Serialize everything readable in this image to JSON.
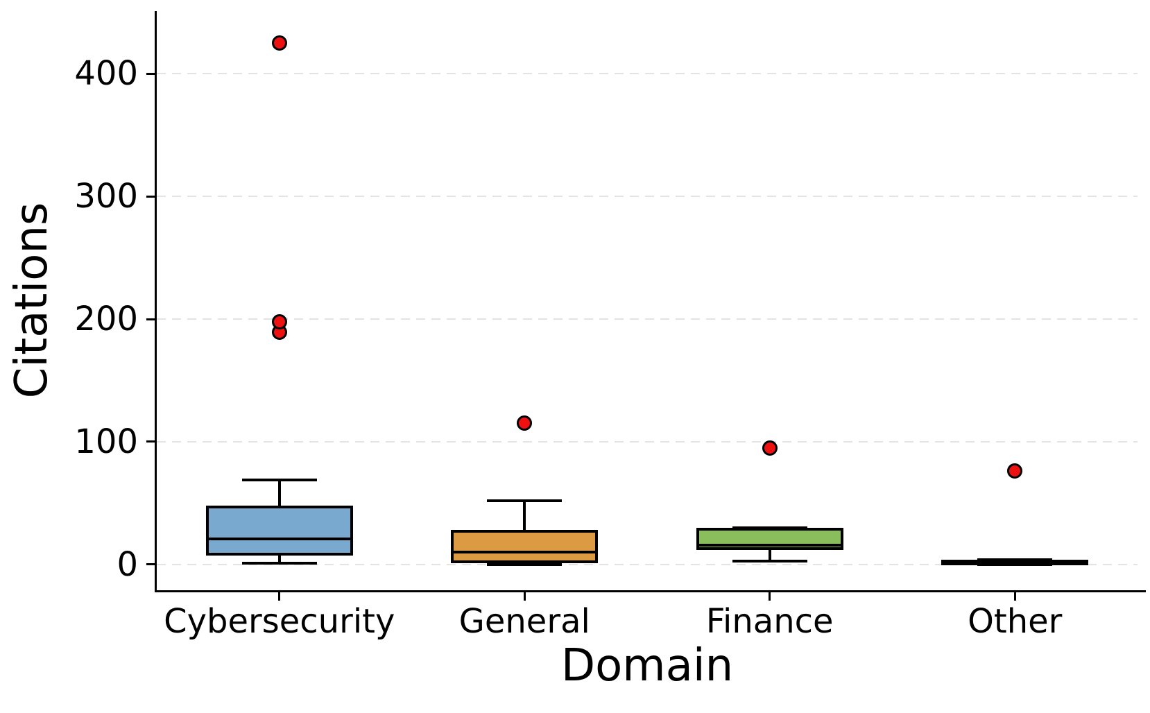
{
  "chart_data": {
    "type": "box",
    "title": "",
    "xlabel": "Domain",
    "ylabel": "Citations",
    "categories": [
      "Cybersecurity",
      "General",
      "Finance",
      "Other"
    ],
    "yticks": [
      0,
      100,
      200,
      300,
      400
    ],
    "ylim": [
      -21,
      451
    ],
    "grid": "horizontal-dashed",
    "grid_color": "#e3e3e3",
    "legend": "none",
    "outlier_marker": {
      "shape": "circle",
      "fill": "#ee1111",
      "edge": "#000000"
    },
    "series": [
      {
        "category": "Cybersecurity",
        "color": "#79a9ce",
        "whisker_low": 1,
        "q1": 7,
        "median": 21,
        "q3": 48,
        "whisker_high": 69,
        "outliers": [
          189,
          198,
          425
        ]
      },
      {
        "category": "General",
        "color": "#dc9a42",
        "whisker_low": 0,
        "q1": 1,
        "median": 10,
        "q3": 28,
        "whisker_high": 52,
        "outliers": [
          115
        ]
      },
      {
        "category": "Finance",
        "color": "#8abe5c",
        "whisker_low": 3,
        "q1": 12,
        "median": 16,
        "q3": 30,
        "whisker_high": 30,
        "outliers": [
          95
        ]
      },
      {
        "category": "Other",
        "color": "#c44e52",
        "whisker_low": 0,
        "q1": 0,
        "median": 2,
        "q3": 4,
        "whisker_high": 4,
        "outliers": [
          76
        ]
      }
    ]
  }
}
